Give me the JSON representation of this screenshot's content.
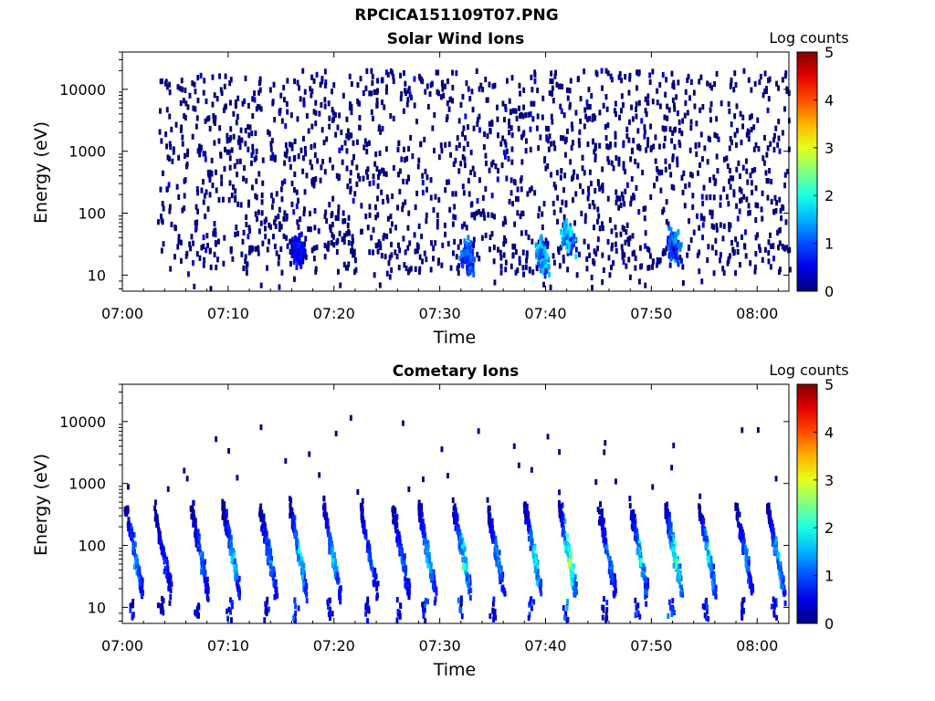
{
  "title": "RPCICA151109T07.PNG",
  "chart_data": [
    {
      "type": "heatmap",
      "title": "Solar Wind Ions",
      "xlabel": "Time",
      "ylabel": "Energy (eV)",
      "x_ticks": [
        "07:00",
        "07:10",
        "07:20",
        "07:30",
        "07:40",
        "07:50",
        "08:00"
      ],
      "xlim_minutes": [
        0,
        63
      ],
      "y_ticks": [
        "10",
        "100",
        "1000",
        "10000"
      ],
      "ylim": [
        5.5,
        40000
      ],
      "y_scale": "log",
      "colorbar": {
        "label": "Log counts",
        "ticks": [
          "0",
          "1",
          "2",
          "3",
          "4",
          "5"
        ],
        "range": [
          0,
          5
        ],
        "colormap": "jet"
      },
      "background": "sparse single counts (log counts ~0) scattered 7:03-8:03 from ~10 eV to ~20000 eV",
      "features": [
        {
          "time_min": 16.5,
          "energy_eV": 25,
          "log_counts": 0.8
        },
        {
          "time_min": 32.5,
          "energy_eV": 20,
          "log_counts": 1.3
        },
        {
          "time_min": 39.5,
          "energy_eV": 20,
          "log_counts": 1.8
        },
        {
          "time_min": 42.0,
          "energy_eV": 40,
          "log_counts": 2.0
        },
        {
          "time_min": 52.0,
          "energy_eV": 30,
          "log_counts": 1.5
        }
      ]
    },
    {
      "type": "heatmap",
      "title": "Cometary Ions",
      "xlabel": "Time",
      "ylabel": "Energy (eV)",
      "x_ticks": [
        "07:00",
        "07:10",
        "07:20",
        "07:30",
        "07:40",
        "07:50",
        "08:00"
      ],
      "xlim_minutes": [
        0,
        63
      ],
      "y_ticks": [
        "10",
        "100",
        "1000",
        "10000"
      ],
      "ylim": [
        5.5,
        40000
      ],
      "y_scale": "log",
      "colorbar": {
        "label": "Log counts",
        "ticks": [
          "0",
          "1",
          "2",
          "3",
          "4",
          "5"
        ],
        "range": [
          0,
          5
        ],
        "colormap": "jet"
      },
      "bursts": [
        {
          "time_min": 0.8,
          "peak_log_counts": 1.5
        },
        {
          "time_min": 3.5,
          "peak_log_counts": 1.0
        },
        {
          "time_min": 7.0,
          "peak_log_counts": 1.3
        },
        {
          "time_min": 10.0,
          "peak_log_counts": 1.8
        },
        {
          "time_min": 13.5,
          "peak_log_counts": 1.5
        },
        {
          "time_min": 16.3,
          "peak_log_counts": 2.0
        },
        {
          "time_min": 19.5,
          "peak_log_counts": 1.8
        },
        {
          "time_min": 23.0,
          "peak_log_counts": 1.3
        },
        {
          "time_min": 26.0,
          "peak_log_counts": 1.3
        },
        {
          "time_min": 28.5,
          "peak_log_counts": 1.8
        },
        {
          "time_min": 31.8,
          "peak_log_counts": 2.3
        },
        {
          "time_min": 35.0,
          "peak_log_counts": 1.5
        },
        {
          "time_min": 38.5,
          "peak_log_counts": 2.0
        },
        {
          "time_min": 41.8,
          "peak_log_counts": 2.8
        },
        {
          "time_min": 45.5,
          "peak_log_counts": 1.5
        },
        {
          "time_min": 48.5,
          "peak_log_counts": 2.0
        },
        {
          "time_min": 51.8,
          "peak_log_counts": 2.5
        },
        {
          "time_min": 55.0,
          "peak_log_counts": 2.0
        },
        {
          "time_min": 58.5,
          "peak_log_counts": 1.3
        },
        {
          "time_min": 61.5,
          "peak_log_counts": 1.8
        }
      ]
    }
  ]
}
